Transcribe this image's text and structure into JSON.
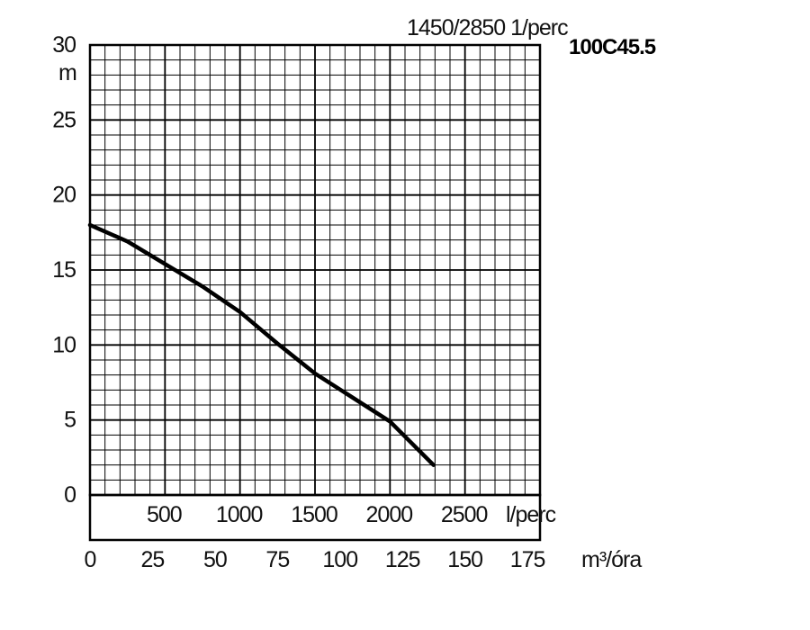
{
  "chart_data": {
    "type": "line",
    "title": "1450/2850  1/perc",
    "model": "100C45.5",
    "ylabel": "m",
    "ylim": [
      0,
      30
    ],
    "grid": true,
    "y_ticks": [
      "0",
      "5",
      "10",
      "15",
      "20",
      "25",
      "30"
    ],
    "x_axes": [
      {
        "unit": "l/perc",
        "range": [
          0,
          3000
        ],
        "ticks": [
          {
            "value": 500,
            "label": "500"
          },
          {
            "value": 1000,
            "label": "1000"
          },
          {
            "value": 1500,
            "label": "1500"
          },
          {
            "value": 2000,
            "label": "2000"
          },
          {
            "value": 2500,
            "label": "2500"
          }
        ]
      },
      {
        "unit": "m³/óra",
        "range": [
          0,
          180
        ],
        "ticks": [
          {
            "value": 0,
            "label": "0"
          },
          {
            "value": 25,
            "label": "25"
          },
          {
            "value": 50,
            "label": "50"
          },
          {
            "value": 75,
            "label": "75"
          },
          {
            "value": 100,
            "label": "100"
          },
          {
            "value": 125,
            "label": "125"
          },
          {
            "value": 150,
            "label": "150"
          },
          {
            "value": 175,
            "label": "175"
          }
        ]
      }
    ],
    "series": [
      {
        "x": [
          0,
          250,
          500,
          750,
          1000,
          1250,
          1500,
          1750,
          2000,
          2150,
          2290
        ],
        "y": [
          18,
          16.9,
          15.4,
          13.9,
          12.2,
          10.1,
          8.1,
          6.5,
          4.9,
          3.4,
          2.0
        ],
        "x_unit": "l/perc",
        "y_unit": "m"
      }
    ]
  }
}
